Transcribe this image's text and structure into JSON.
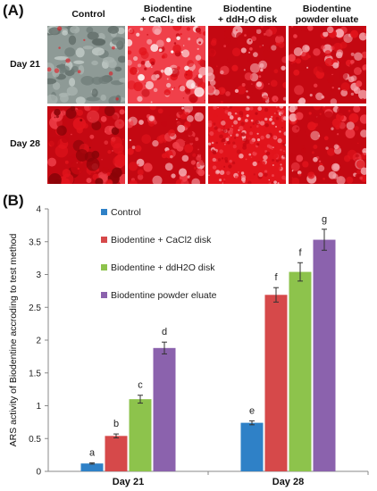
{
  "panel_a": {
    "label": "(A)",
    "columns": [
      {
        "line1": "Control",
        "line2": ""
      },
      {
        "line1": "Biodentine",
        "line2": "+ CaCl₂ disk"
      },
      {
        "line1": "Biodentine",
        "line2": "+ ddH₂O disk"
      },
      {
        "line1": "Biodentine",
        "line2": "powder eluate"
      }
    ],
    "rows": [
      "Day 21",
      "Day 28"
    ],
    "stain_colors": {
      "deep": "#c40812",
      "mid": "#e2141c",
      "light": "#f0404a",
      "pale": "#f6a8ae",
      "gray": "#8e9a96"
    }
  },
  "chart_data": {
    "label": "(B)",
    "type": "bar",
    "categories": [
      "Day 21",
      "Day 28"
    ],
    "series": [
      {
        "name": "Control",
        "color": "#2f81c7",
        "values": [
          0.12,
          0.74
        ],
        "errors": [
          0.01,
          0.03
        ],
        "letters": [
          "a",
          "e"
        ]
      },
      {
        "name": "Biodentine + CaCl2 disk",
        "color": "#d6494a",
        "values": [
          0.54,
          2.69
        ],
        "errors": [
          0.03,
          0.11
        ],
        "letters": [
          "b",
          "f"
        ]
      },
      {
        "name": "Biodentine + ddH2O disk",
        "color": "#8dc34c",
        "values": [
          1.1,
          3.04
        ],
        "errors": [
          0.06,
          0.14
        ],
        "letters": [
          "c",
          "f"
        ]
      },
      {
        "name": "Biodentine powder eluate",
        "color": "#8b62ad",
        "values": [
          1.88,
          3.53
        ],
        "errors": [
          0.09,
          0.16
        ],
        "letters": [
          "d",
          "g"
        ]
      }
    ],
    "ylabel": "ARS activity of Biodentine accroding to test method",
    "ylim": [
      0,
      4
    ],
    "yticks": [
      0,
      0.5,
      1,
      1.5,
      2,
      2.5,
      3,
      3.5,
      4
    ],
    "ytick_labels": [
      "0",
      "0.5",
      "1",
      "1.5",
      "2",
      "2.5",
      "3",
      "3.5",
      "4"
    ],
    "grid": false,
    "legend_position": "top-left"
  }
}
